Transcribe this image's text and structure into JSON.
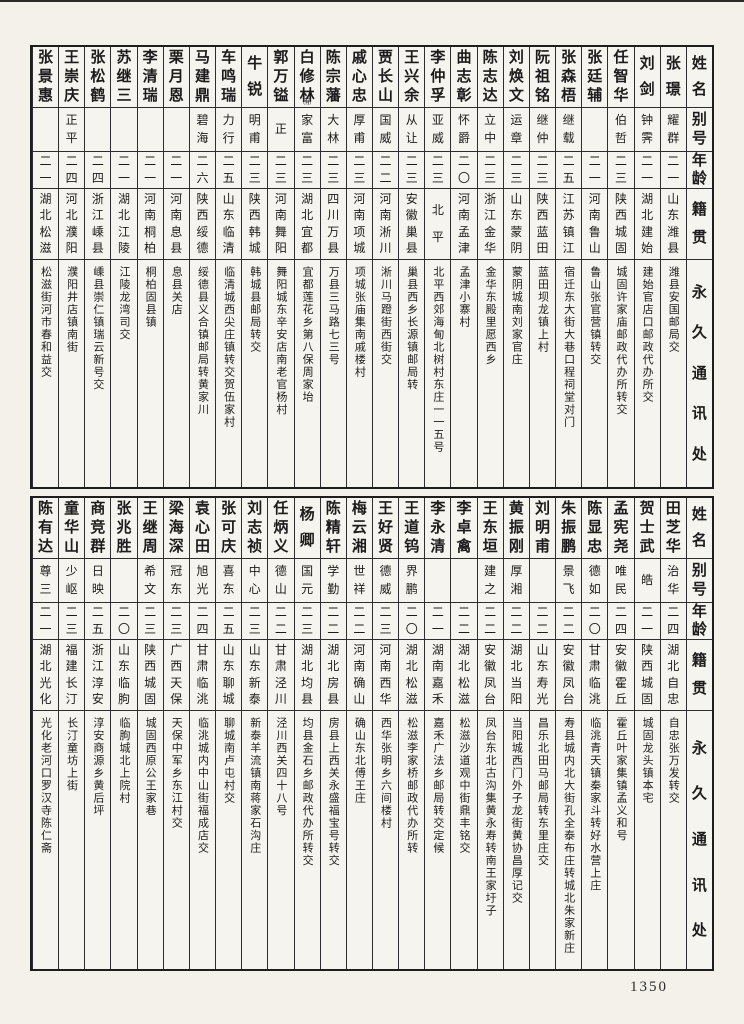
{
  "page_number": "1350",
  "ink_color": "#1c1c1c",
  "paper_color": "#f3f1ea",
  "column_headers": {
    "name": "姓名",
    "alias": "别号",
    "age": "年龄",
    "native_place": "籍贯",
    "address": "永久通讯处"
  },
  "top_table": {
    "entries": [
      {
        "name": "张璟",
        "alias": "耀群",
        "age": "二一",
        "native": "山东潍县",
        "address": "潍县安国邮局交"
      },
      {
        "name": "刘剑",
        "alias": "钟霁",
        "age": "二一",
        "native": "湖北建始",
        "address": "建始官店口邮政代办所交"
      },
      {
        "name": "任智华",
        "alias": "伯哲",
        "age": "二三",
        "native": "陕西城固",
        "address": "城固许家庙邮政代办所转交"
      },
      {
        "name": "张廷辅",
        "alias": "",
        "age": "二一",
        "native": "河南鲁山",
        "address": "鲁山张官营镇转交"
      },
      {
        "name": "张森梧",
        "alias": "继载",
        "age": "二五",
        "native": "江苏镇江",
        "address": "宿迁东大街大巷口程祠堂对门"
      },
      {
        "name": "阮祖铭",
        "alias": "继仲",
        "age": "二三",
        "native": "陕西蓝田",
        "address": "蓝田坝龙镇上村"
      },
      {
        "name": "刘焕文",
        "alias": "运章",
        "age": "二三",
        "native": "山东蒙阴",
        "address": "蒙阴城南刘家官庄"
      },
      {
        "name": "陈志达",
        "alias": "立中",
        "age": "二三",
        "native": "浙江金华",
        "address": "金华东殿里愿西乡"
      },
      {
        "name": "曲志彰",
        "alias": "怀爵",
        "age": "二〇",
        "native": "河南孟津",
        "address": "孟津小寨村"
      },
      {
        "name": "李仲孚",
        "alias": "亚威",
        "age": "二三",
        "native": "北平",
        "address": "北平西郊海甸北树村东庄一一五号"
      },
      {
        "name": "王兴余",
        "alias": "从让",
        "age": "二三",
        "native": "安徽巢县",
        "address": "巢县西乡长源镇邮局转"
      },
      {
        "name": "贾长山",
        "alias": "国威",
        "age": "二二",
        "native": "河南淅川",
        "address": "淅川马蹬街西街交"
      },
      {
        "name": "戚心忠",
        "alias": "厚甫",
        "age": "二三",
        "native": "河南项城",
        "address": "项城张庙集南戚楼村"
      },
      {
        "name": "陈宗藩",
        "alias": "大林",
        "age": "二三",
        "native": "四川万县",
        "address": "万县三马路七三号"
      },
      {
        "name": "白修林",
        "note": "㈲",
        "alias": "家富",
        "age": "二三",
        "native": "湖北宜都",
        "address": "宜都莲花乡第八保周家坮"
      },
      {
        "name": "郭万镒",
        "alias": "正",
        "age": "二三",
        "native": "河南舞阳",
        "address": "舞阳城东辛安店南老官杨村"
      },
      {
        "name": "牛锐",
        "alias": "明甫",
        "age": "二三",
        "native": "陕西韩城",
        "address": "韩城县邮局转交"
      },
      {
        "name": "车鸣瑞",
        "alias": "力行",
        "age": "二五",
        "native": "山东临清",
        "address": "临清城西尖庄镇转交贺伍家村"
      },
      {
        "name": "马建鼎",
        "alias": "碧海",
        "age": "二六",
        "native": "陕西绥德",
        "address": "绥德县义合镇邮局转黄家川"
      },
      {
        "name": "栗月恩",
        "alias": "",
        "age": "二一",
        "native": "河南息县",
        "address": "息县关店"
      },
      {
        "name": "李清瑞",
        "alias": "",
        "age": "二一",
        "native": "河南桐柏",
        "address": "桐柏固县镇"
      },
      {
        "name": "苏继三",
        "alias": "",
        "age": "二一",
        "native": "湖北江陵",
        "address": "江陵龙湾司交"
      },
      {
        "name": "张松鹤",
        "alias": "",
        "age": "二四",
        "native": "浙江嵊县",
        "address": "嵊县崇仁镇瑞云新号交"
      },
      {
        "name": "王崇庆",
        "alias": "正平",
        "age": "二四",
        "native": "河北濮阳",
        "address": "濮阳井店镇南街"
      },
      {
        "name": "张景惠",
        "alias": "",
        "age": "二一",
        "native": "湖北松滋",
        "address": "松滋街河市春和益交"
      }
    ]
  },
  "bottom_table": {
    "entries": [
      {
        "name": "田芝华",
        "alias": "治华",
        "age": "二四",
        "native": "湖北自忠",
        "address": "自忠张万发转交"
      },
      {
        "name": "贺士武",
        "alias": "皓",
        "age": "二一",
        "native": "陕西城固",
        "address": "城固龙头镇本宅"
      },
      {
        "name": "孟宪尧",
        "alias": "唯民",
        "age": "二四",
        "native": "安徽霍丘",
        "address": "霍丘叶家集镇孟义和号"
      },
      {
        "name": "陈显忠",
        "alias": "德如",
        "age": "二〇",
        "native": "甘肃临洮",
        "address": "临洮青天镇秦家斗转好水营上庄"
      },
      {
        "name": "朱振鹏",
        "alias": "景飞",
        "age": "二二",
        "native": "安徽凤台",
        "address": "寿县城内北大街孔全泰布庄转城北朱家新庄"
      },
      {
        "name": "刘明甫",
        "alias": "",
        "age": "二二",
        "native": "山东寿光",
        "address": "昌乐北田马邮局转东里庄交"
      },
      {
        "name": "黄振刚",
        "alias": "厚湘",
        "age": "二二",
        "native": "湖北当阳",
        "address": "当阳城西门外子龙街黄协昌厚记交"
      },
      {
        "name": "王东垣",
        "alias": "建之",
        "age": "二二",
        "native": "安徽凤台",
        "address": "凤台东北古沟集黄永寿转南王家圩子"
      },
      {
        "name": "李卓禽",
        "alias": "",
        "age": "二二",
        "native": "湖北松滋",
        "address": "松滋沙道观中街鼎丰铭交"
      },
      {
        "name": "李永清",
        "alias": "",
        "age": "二一",
        "native": "湖南嘉禾",
        "address": "嘉禾广法乡邮局转交定候"
      },
      {
        "name": "王道钨",
        "alias": "界鹏",
        "age": "二〇",
        "native": "湖北松滋",
        "address": "松滋李家桥邮政代办所转"
      },
      {
        "name": "王好贤",
        "alias": "德威",
        "age": "二三",
        "native": "河南西华",
        "address": "西华张明乡六间楼村"
      },
      {
        "name": "梅云湘",
        "alias": "世祥",
        "age": "二二",
        "native": "河南确山",
        "address": "确山东北傅王庄"
      },
      {
        "name": "陈精轩",
        "alias": "学勤",
        "age": "二二",
        "native": "湖北房县",
        "address": "房县上西关永盛福宝号转交"
      },
      {
        "name": "杨卿",
        "alias": "国元",
        "age": "二三",
        "native": "湖北均县",
        "address": "均县金石乡邮政代办所转交"
      },
      {
        "name": "任炳义",
        "alias": "德山",
        "age": "二二",
        "native": "甘肃泾川",
        "address": "泾川西关四十八号"
      },
      {
        "name": "刘志祯",
        "alias": "中心",
        "age": "二三",
        "native": "山东新泰",
        "address": "新泰羊流镇南蒋家石沟庄"
      },
      {
        "name": "张可庆",
        "alias": "喜东",
        "age": "二五",
        "native": "山东聊城",
        "address": "聊城南卢屯村交"
      },
      {
        "name": "袁心田",
        "alias": "旭光",
        "age": "二四",
        "native": "甘肃临洮",
        "address": "临洮城内中山街福成店交"
      },
      {
        "name": "梁海深",
        "alias": "冠东",
        "age": "二三",
        "native": "广西天保",
        "address": "天保中军乡东江村交"
      },
      {
        "name": "王继周",
        "alias": "希文",
        "age": "二三",
        "native": "陕西城固",
        "address": "城固西原公王家巷"
      },
      {
        "name": "张兆胜",
        "alias": "",
        "age": "二〇",
        "native": "山东临朐",
        "address": "临朐城北上院村"
      },
      {
        "name": "商竞群",
        "alias": "日映",
        "age": "二五",
        "native": "浙江淳安",
        "address": "淳安商源乡黄后坪"
      },
      {
        "name": "童华山",
        "alias": "少岖",
        "age": "二三",
        "native": "福建长汀",
        "address": "长汀童坊上街"
      },
      {
        "name": "陈有达",
        "alias": "尊三",
        "age": "二一",
        "native": "湖北光化",
        "address": "光化老河口罗汉寺陈仁斋"
      }
    ]
  }
}
